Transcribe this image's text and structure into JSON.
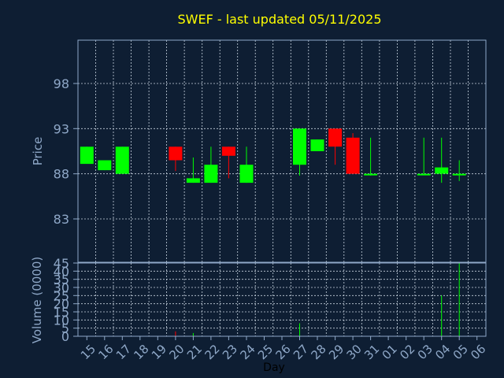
{
  "colors": {
    "background": "#0e1e33",
    "title": "#ffff00",
    "axis_text": "#8fa8c8",
    "frame": "#8fa8c8",
    "grid": "#c8d4e0",
    "up": "#00ff00",
    "down": "#ff0000",
    "day_label": "#000000"
  },
  "chart_data": [
    {
      "type": "candlestick",
      "title": "SWEF - last updated 05/11/2025",
      "xlabel": "",
      "ylabel": "Price",
      "ylim": [
        78.2,
        102.8
      ],
      "yticks": [
        83,
        88,
        93,
        98
      ],
      "grid": true,
      "days": [
        "15",
        "16",
        "17",
        "18",
        "19",
        "20",
        "21",
        "22",
        "23",
        "24",
        "25",
        "26",
        "27",
        "28",
        "29",
        "30",
        "31",
        "01",
        "02",
        "03",
        "04",
        "05",
        "06"
      ],
      "candles": [
        {
          "day": "15",
          "open": 89.1,
          "high": 91.0,
          "low": 89.1,
          "close": 91.0
        },
        {
          "day": "16",
          "open": 88.4,
          "high": 89.5,
          "low": 88.4,
          "close": 89.5
        },
        {
          "day": "17",
          "open": 88.0,
          "high": 91.0,
          "low": 88.0,
          "close": 91.0
        },
        {
          "day": "20",
          "open": 91.0,
          "high": 91.0,
          "low": 88.3,
          "close": 89.5
        },
        {
          "day": "21",
          "open": 87.0,
          "high": 89.8,
          "low": 87.0,
          "close": 87.5
        },
        {
          "day": "22",
          "open": 87.0,
          "high": 91.0,
          "low": 87.0,
          "close": 89.0
        },
        {
          "day": "23",
          "open": 91.0,
          "high": 91.0,
          "low": 87.5,
          "close": 90.0
        },
        {
          "day": "24",
          "open": 87.0,
          "high": 91.0,
          "low": 87.0,
          "close": 89.0
        },
        {
          "day": "27",
          "open": 89.0,
          "high": 93.0,
          "low": 87.8,
          "close": 93.0
        },
        {
          "day": "28",
          "open": 90.5,
          "high": 91.8,
          "low": 90.5,
          "close": 91.8
        },
        {
          "day": "29",
          "open": 93.0,
          "high": 93.0,
          "low": 89.0,
          "close": 91.0
        },
        {
          "day": "30",
          "open": 92.0,
          "high": 92.5,
          "low": 88.0,
          "close": 88.0
        },
        {
          "day": "31",
          "open": 87.9,
          "high": 92.0,
          "low": 87.8,
          "close": 88.0
        },
        {
          "day": "03",
          "open": 87.9,
          "high": 92.0,
          "low": 87.9,
          "close": 88.0
        },
        {
          "day": "04",
          "open": 88.0,
          "high": 92.0,
          "low": 87.0,
          "close": 88.7
        },
        {
          "day": "05",
          "open": 87.9,
          "high": 89.5,
          "low": 87.2,
          "close": 88.0
        }
      ]
    },
    {
      "type": "bar",
      "title": "",
      "xlabel": "Day",
      "ylabel": "Volume (0000)",
      "ylim": [
        0,
        45
      ],
      "yticks": [
        0,
        5,
        10,
        15,
        20,
        25,
        30,
        35,
        40,
        45
      ],
      "grid": true,
      "categories": [
        "15",
        "16",
        "17",
        "18",
        "19",
        "20",
        "21",
        "22",
        "23",
        "24",
        "25",
        "26",
        "27",
        "28",
        "29",
        "30",
        "31",
        "01",
        "02",
        "03",
        "04",
        "05",
        "06"
      ],
      "values": [
        0,
        0,
        0,
        0,
        0,
        3,
        2,
        0,
        0,
        0,
        0,
        0,
        8,
        0,
        0,
        0,
        0,
        0,
        0,
        0,
        25,
        45,
        0
      ],
      "bar_colors": [
        "up",
        "up",
        "up",
        "up",
        "up",
        "down",
        "up",
        "up",
        "down",
        "up",
        "up",
        "up",
        "up",
        "up",
        "down",
        "down",
        "up",
        "up",
        "up",
        "up",
        "up",
        "up",
        "up"
      ]
    }
  ]
}
